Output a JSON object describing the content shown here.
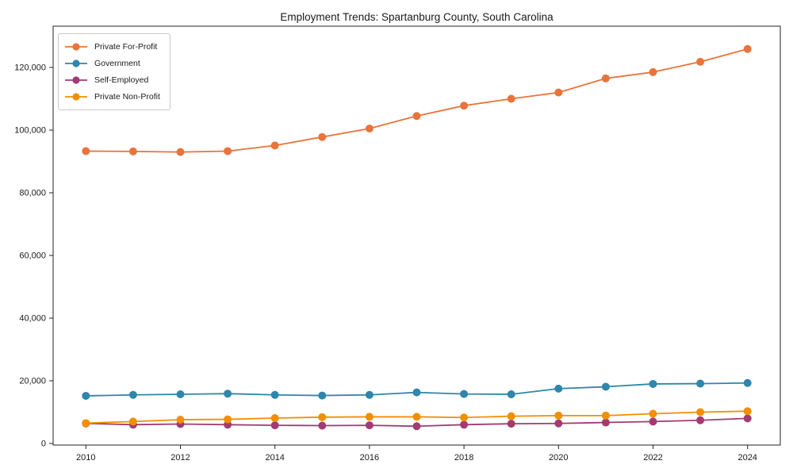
{
  "chart_data": {
    "type": "line",
    "title": "Employment Trends: Spartanburg County, South Carolina",
    "xlabel": "",
    "ylabel": "",
    "x": [
      2010,
      2011,
      2012,
      2013,
      2014,
      2015,
      2016,
      2017,
      2018,
      2019,
      2020,
      2021,
      2022,
      2023,
      2024
    ],
    "x_tick_labels": [
      "2010",
      "2012",
      "2014",
      "2016",
      "2018",
      "2020",
      "2022",
      "2024"
    ],
    "x_tick_indices": [
      0,
      2,
      4,
      6,
      8,
      10,
      12,
      14
    ],
    "y_tick_values": [
      0,
      20000,
      40000,
      60000,
      80000,
      100000,
      120000
    ],
    "y_tick_labels": [
      "0",
      "20,000",
      "40,000",
      "60,000",
      "80,000",
      "100,000",
      "120,000"
    ],
    "ylim": [
      0,
      133000
    ],
    "grid": false,
    "legend_position": "upper left",
    "series": [
      {
        "name": "Private For-Profit",
        "color": "#E8743B",
        "values": [
          93300,
          93200,
          93000,
          93300,
          95100,
          97800,
          100500,
          104500,
          107800,
          110000,
          112000,
          116500,
          118500,
          121800,
          125900
        ]
      },
      {
        "name": "Government",
        "color": "#2E86AB",
        "values": [
          15200,
          15500,
          15700,
          15900,
          15500,
          15300,
          15500,
          16300,
          15800,
          15700,
          17500,
          18100,
          19000,
          19100,
          19300
        ]
      },
      {
        "name": "Self-Employed",
        "color": "#A23B72",
        "values": [
          6400,
          6000,
          6200,
          6000,
          5800,
          5700,
          5800,
          5500,
          6000,
          6300,
          6400,
          6700,
          7000,
          7400,
          8000
        ]
      },
      {
        "name": "Private Non-Profit",
        "color": "#F18F01",
        "values": [
          6500,
          7000,
          7600,
          7700,
          8100,
          8400,
          8500,
          8500,
          8300,
          8700,
          8900,
          8900,
          9500,
          10000,
          10300
        ]
      }
    ]
  }
}
